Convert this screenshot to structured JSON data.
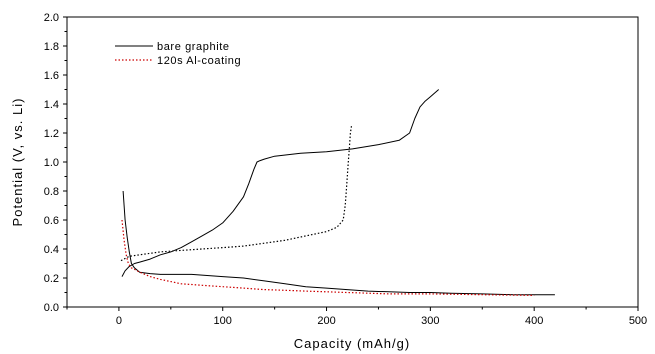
{
  "chart_data": {
    "type": "line",
    "xlabel": "Capacity (mAh/g)",
    "ylabel": "Potential (V, vs. Li)",
    "xlim": [
      -50,
      500
    ],
    "ylim": [
      0.0,
      2.0
    ],
    "x_ticks": [
      "0",
      "100",
      "200",
      "300",
      "400",
      "500"
    ],
    "y_ticks": [
      "0.0",
      "0.2",
      "0.4",
      "0.6",
      "0.8",
      "1.0",
      "1.2",
      "1.4",
      "1.6",
      "1.8",
      "2.0"
    ],
    "grid": false,
    "legend_position": "top-left",
    "series": [
      {
        "name": "bare graphite",
        "color": "#000000",
        "style": "solid",
        "x": [
          4,
          6,
          8,
          10,
          12,
          15,
          20,
          30,
          40,
          50,
          60,
          70,
          80,
          100,
          120,
          140,
          160,
          180,
          200,
          220,
          240,
          260,
          280,
          300,
          320,
          350,
          380,
          400,
          420
        ],
        "y": [
          0.8,
          0.6,
          0.48,
          0.38,
          0.3,
          0.27,
          0.24,
          0.23,
          0.225,
          0.225,
          0.225,
          0.225,
          0.22,
          0.21,
          0.2,
          0.18,
          0.16,
          0.14,
          0.13,
          0.12,
          0.11,
          0.105,
          0.1,
          0.1,
          0.095,
          0.09,
          0.085,
          0.085,
          0.085
        ]
      },
      {
        "name": "bare graphite",
        "color": "#000000",
        "style": "solid",
        "x": [
          3,
          6,
          10,
          15,
          20,
          30,
          40,
          50,
          60,
          70,
          80,
          90,
          100,
          110,
          120,
          125,
          130,
          133,
          136,
          140,
          150,
          175,
          200,
          225,
          250,
          270,
          280,
          285,
          290,
          295,
          300,
          308
        ],
        "y": [
          0.21,
          0.25,
          0.28,
          0.3,
          0.31,
          0.33,
          0.36,
          0.38,
          0.41,
          0.45,
          0.49,
          0.53,
          0.58,
          0.66,
          0.76,
          0.85,
          0.95,
          1.0,
          1.01,
          1.02,
          1.04,
          1.06,
          1.07,
          1.09,
          1.12,
          1.15,
          1.2,
          1.3,
          1.38,
          1.42,
          1.45,
          1.5
        ]
      },
      {
        "name": "120s Al-coating",
        "color": "#cc0000",
        "style": "dotted",
        "x": [
          3,
          5,
          7,
          9,
          12,
          15,
          20,
          30,
          40,
          50,
          60,
          70,
          80,
          100,
          120,
          140,
          160,
          180,
          200,
          220,
          240,
          260,
          300,
          350,
          400
        ],
        "y": [
          0.6,
          0.46,
          0.36,
          0.3,
          0.27,
          0.26,
          0.24,
          0.21,
          0.19,
          0.175,
          0.16,
          0.155,
          0.15,
          0.14,
          0.13,
          0.12,
          0.115,
          0.11,
          0.105,
          0.1,
          0.095,
          0.09,
          0.09,
          0.085,
          0.08
        ]
      },
      {
        "color": "#000000",
        "style": "dotted",
        "x": [
          2,
          10,
          20,
          40,
          60,
          80,
          100,
          120,
          140,
          160,
          180,
          200,
          210,
          216,
          218,
          219,
          220,
          221,
          222,
          223,
          224
        ],
        "y": [
          0.32,
          0.35,
          0.36,
          0.38,
          0.39,
          0.4,
          0.41,
          0.42,
          0.44,
          0.46,
          0.49,
          0.52,
          0.55,
          0.6,
          0.7,
          0.8,
          0.9,
          1.0,
          1.1,
          1.2,
          1.25
        ]
      }
    ]
  }
}
